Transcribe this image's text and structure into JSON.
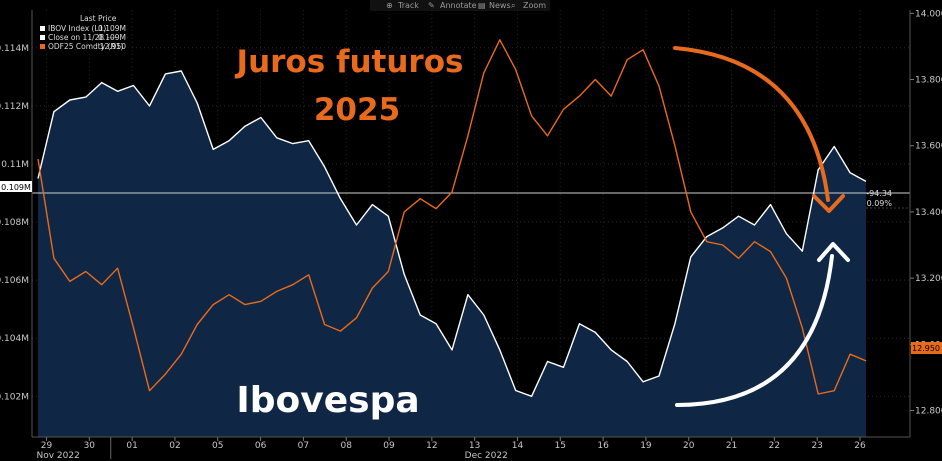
{
  "toolbar": {
    "track": "Track",
    "annotate": "Annotate",
    "news": "News",
    "zoom": "Zoom"
  },
  "legend": {
    "title": "Last Price",
    "items": [
      {
        "label": "IBOV Index  (L1)",
        "value": "0.109M",
        "color": "#ffffff"
      },
      {
        "label": "Close on 11/28 ----",
        "value": "0.109M",
        "color": "#ffffff"
      },
      {
        "label": "ODF25 Comdty  (R1)",
        "value": "12.950",
        "color": "#e86a1c"
      }
    ]
  },
  "annotations": {
    "juros_line1": "Juros futuros",
    "juros_line2": "2025",
    "ibovespa": "Ibovespa"
  },
  "badges": {
    "left_current": "0.109M",
    "right_current": "12.950",
    "change_abs": "-94.34",
    "change_pct": "0.09%"
  },
  "chart_data": {
    "type": "line",
    "x_labels": [
      "29",
      "30",
      "01",
      "02",
      "05",
      "06",
      "07",
      "08",
      "09",
      "12",
      "13",
      "14",
      "15",
      "16",
      "19",
      "20",
      "21",
      "22",
      "23",
      "26"
    ],
    "x_month_labels": [
      {
        "label": "Nov 2022",
        "at": "29"
      },
      {
        "label": "Dec 2022",
        "at": "13"
      }
    ],
    "y_left": {
      "ticks": [
        0.102,
        0.104,
        0.106,
        0.108,
        0.11,
        0.112,
        0.114
      ],
      "tick_labels": [
        "0.102M",
        "0.104M",
        "0.106M",
        "0.108M",
        "0.11M",
        "0.112M",
        "0.114M"
      ],
      "range": [
        0.1006,
        0.1153
      ]
    },
    "y_right": {
      "ticks": [
        12.8,
        13.0,
        13.2,
        13.4,
        13.6,
        13.8,
        14.0
      ],
      "tick_labels": [
        "12.800",
        "13.000",
        "13.200",
        "13.400",
        "13.600",
        "13.800",
        "14.000"
      ],
      "range": [
        12.72,
        14.01
      ]
    },
    "reference_line": {
      "name": "Close on 11/28",
      "value": 0.109
    },
    "series": [
      {
        "name": "IBOV Index (L1)",
        "axis": "left",
        "style": "area",
        "color": "#ffffff",
        "fill": "#0f2744",
        "values": [
          0.1095,
          0.1118,
          0.1122,
          0.1123,
          0.1128,
          0.1125,
          0.1127,
          0.112,
          0.1131,
          0.1132,
          0.1121,
          0.1105,
          0.1108,
          0.1113,
          0.1116,
          0.1109,
          0.1107,
          0.1108,
          0.1099,
          0.1088,
          0.1079,
          0.1086,
          0.1082,
          0.1062,
          0.1048,
          0.1045,
          0.1036,
          0.1055,
          0.1048,
          0.1036,
          0.1022,
          0.102,
          0.1032,
          0.103,
          0.1045,
          0.1042,
          0.1036,
          0.1032,
          0.1025,
          0.1027,
          0.1045,
          0.1068,
          0.1075,
          0.1078,
          0.1082,
          0.1079,
          0.1086,
          0.1076,
          0.107,
          0.1098,
          0.1106,
          0.1097,
          0.1094
        ]
      },
      {
        "name": "ODF25 Comdty (R1)",
        "axis": "right",
        "style": "line",
        "color": "#e86a1c",
        "values": [
          13.56,
          13.26,
          13.19,
          13.22,
          13.18,
          13.23,
          13.05,
          12.86,
          12.91,
          12.97,
          13.06,
          13.12,
          13.15,
          13.12,
          13.13,
          13.16,
          13.18,
          13.21,
          13.06,
          13.04,
          13.08,
          13.17,
          13.22,
          13.4,
          13.44,
          13.41,
          13.46,
          13.63,
          13.82,
          13.92,
          13.83,
          13.69,
          13.63,
          13.71,
          13.75,
          13.8,
          13.75,
          13.86,
          13.89,
          13.78,
          13.6,
          13.4,
          13.31,
          13.3,
          13.26,
          13.31,
          13.28,
          13.2,
          13.05,
          12.85,
          12.86,
          12.97,
          12.95
        ]
      }
    ],
    "grid": true,
    "legend_position": "top-left"
  }
}
